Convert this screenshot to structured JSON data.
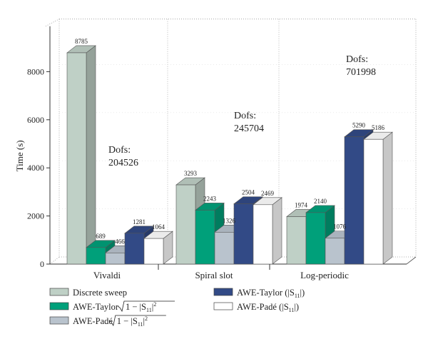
{
  "chart_data": {
    "type": "bar",
    "ylabel": "Time (s)",
    "xlabel": "",
    "ylim": [
      0,
      9000
    ],
    "yticks": [
      0,
      2000,
      4000,
      6000,
      8000
    ],
    "yticks_text": [
      "0",
      "2000",
      "4000",
      "6000",
      "8000"
    ],
    "categories": [
      "Vivaldi",
      "Spiral slot",
      "Log-periodic"
    ],
    "series": [
      {
        "name": "Discrete sweep",
        "color": "#bfd0c6",
        "values": [
          8785,
          3293,
          1974
        ]
      },
      {
        "name": "AWE-Taylor",
        "color": "#00a07a",
        "values": [
          689,
          2243,
          2140
        ]
      },
      {
        "name": "AWE-Padé",
        "color": "#b9c3cd",
        "values": [
          466,
          1326,
          1076
        ]
      },
      {
        "name": "AWE-Taylor (|S11|)",
        "color": "#324a86",
        "values": [
          1281,
          2504,
          5290
        ]
      },
      {
        "name": "AWE-Padé (|S11|)",
        "color": "#ffffff",
        "values": [
          1064,
          2469,
          5186
        ]
      }
    ],
    "value_labels": [
      [
        "8785",
        "689",
        "466",
        "1281",
        "1064"
      ],
      [
        "3293",
        "2243",
        "1326",
        "2504",
        "2469"
      ],
      [
        "1974",
        "2140",
        "1076",
        "5290",
        "5186"
      ]
    ],
    "annotations": [
      {
        "line1": "Dofs:",
        "line2": "204526"
      },
      {
        "line1": "Dofs:",
        "line2": "245704"
      },
      {
        "line1": "Dofs:",
        "line2": "701998"
      }
    ],
    "legend": {
      "placement": "bottom",
      "items": [
        {
          "prefix": "Discrete sweep"
        },
        {
          "prefix": "AWE-Taylor",
          "formula": "1 − |S",
          "sub": "11",
          "suffix": "|",
          "sup": "2"
        },
        {
          "prefix": "AWE-Padé",
          "formula": "1 − |S",
          "sub": "11",
          "suffix": "|",
          "sup": "2"
        },
        {
          "prefix": "AWE-Taylor (|S",
          "sub": "11",
          "suffix": "|)"
        },
        {
          "prefix": "AWE-Padé (|S",
          "sub": "11",
          "suffix": "|)"
        }
      ]
    },
    "grid": true,
    "style": "3d-bars"
  }
}
